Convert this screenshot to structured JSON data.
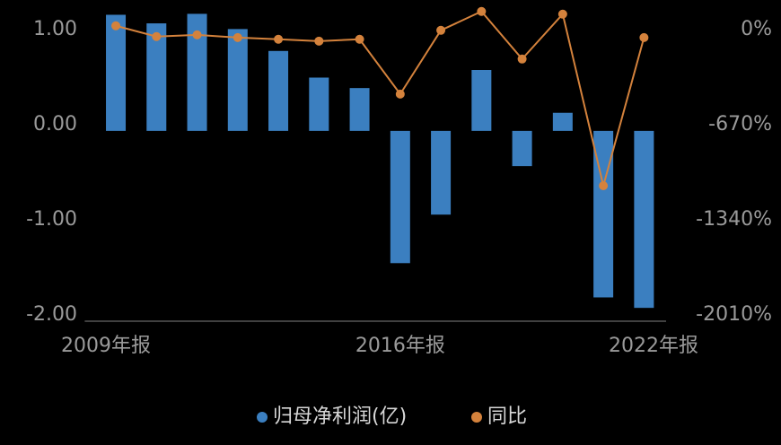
{
  "chart_data": {
    "type": "bar-line",
    "categories": [
      "2009年报",
      null,
      null,
      null,
      null,
      null,
      null,
      "2016年报",
      null,
      null,
      null,
      null,
      null,
      "2022年报"
    ],
    "series": [
      {
        "name": "归母净利润(亿)",
        "type": "bar",
        "color": "#3b7fc0",
        "values": [
          1.22,
          1.13,
          1.23,
          1.07,
          0.84,
          0.56,
          0.45,
          -1.39,
          -0.88,
          0.64,
          -0.37,
          0.19,
          -1.75,
          -1.86
        ]
      },
      {
        "name": "同比",
        "type": "line",
        "axis": "y2",
        "color": "#d4823c",
        "values": [
          70,
          -6,
          6,
          -13,
          -25,
          -38,
          -25,
          -411,
          38,
          171,
          -164,
          152,
          -1056,
          -13
        ]
      }
    ],
    "ylim": [
      -2,
      1.3
    ],
    "yticks": [
      {
        "value": -2,
        "label": "-2.00"
      },
      {
        "value": -1,
        "label": "-1.00"
      },
      {
        "value": 0,
        "label": "0.00"
      },
      {
        "value": 1,
        "label": "1.00"
      }
    ],
    "y2lim": [
      -2010,
      201
    ],
    "y2ticks": [
      {
        "value": -2010,
        "label": "-2010%"
      },
      {
        "value": -1340,
        "label": "-1340%"
      },
      {
        "value": -670,
        "label": "-670%"
      },
      {
        "value": 0,
        "label": "0%"
      }
    ],
    "grid": false
  }
}
